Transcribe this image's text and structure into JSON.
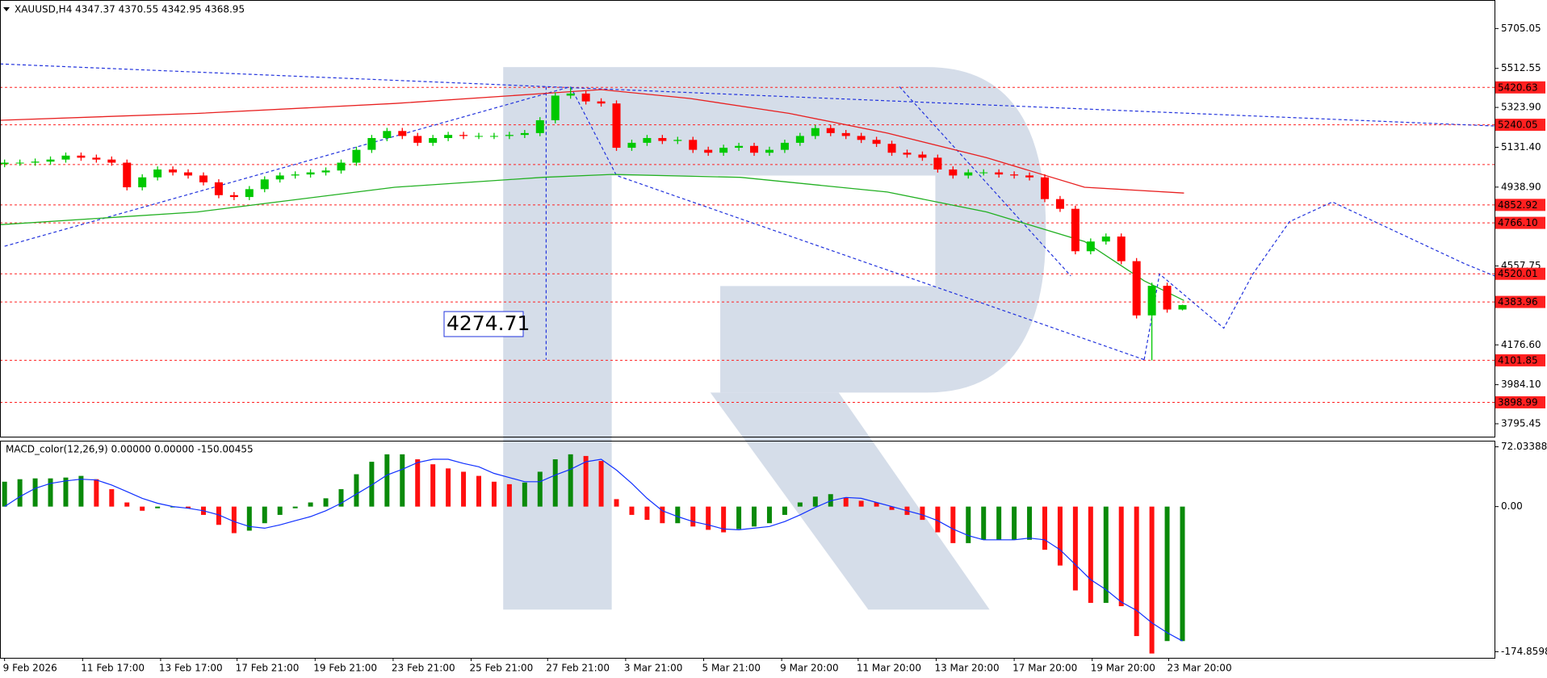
{
  "chart_data": {
    "type": "candlestick",
    "title": "XAUUSD,H4  4347.37 4370.55 4342.95 4368.95",
    "xlim": [
      -0.3,
      97.4
    ],
    "xticks": [
      {
        "value": 0,
        "label": "9 Feb 2026"
      },
      {
        "value": 5.1,
        "label": "11 Feb 17:00"
      },
      {
        "value": 10.2,
        "label": "13 Feb 17:00"
      },
      {
        "value": 15.2,
        "label": "17 Feb 21:00"
      },
      {
        "value": 20.3,
        "label": "19 Feb 21:00"
      },
      {
        "value": 25.4,
        "label": "23 Feb 21:00"
      },
      {
        "value": 30.5,
        "label": "25 Feb 21:00"
      },
      {
        "value": 35.5,
        "label": "27 Feb 21:00"
      },
      {
        "value": 40.6,
        "label": "3 Mar 21:00"
      },
      {
        "value": 45.7,
        "label": "5 Mar 21:00"
      },
      {
        "value": 50.8,
        "label": "9 Mar 20:00"
      },
      {
        "value": 55.8,
        "label": "11 Mar 20:00"
      },
      {
        "value": 60.9,
        "label": "13 Mar 20:00"
      },
      {
        "value": 66,
        "label": "17 Mar 20:00"
      },
      {
        "value": 71.1,
        "label": "19 Mar 20:00"
      },
      {
        "value": 76.1,
        "label": "23 Mar 20:00"
      }
    ],
    "ylim": [
      3733,
      5843
    ],
    "yticks": [
      5705.05,
      5512.55,
      {
        "value": 5323.9,
        "label": "5323.90"
      },
      {
        "value": 5131.4,
        "label": "5131.40"
      },
      {
        "value": 4938.9,
        "label": "4938.90"
      },
      4557.75,
      {
        "value": 4176.6,
        "label": "4176.60"
      },
      {
        "value": 3984.1,
        "label": "3984.10"
      },
      3795.45
    ],
    "up_color": "#00c800",
    "down_color": "#ff0000",
    "open": [
      5050,
      5057,
      5057,
      5062,
      5072,
      5091,
      5081,
      5072,
      5057,
      4938,
      4986,
      5024,
      5010,
      4995,
      4962,
      4900,
      4891,
      4929,
      4976,
      4995,
      5000,
      5010,
      5019,
      5057,
      5119,
      5176,
      5210,
      5186,
      5153,
      5176,
      5191,
      5186,
      5186,
      5186,
      5191,
      5200,
      5262,
      5381,
      5391,
      5353,
      5343,
      5129,
      5153,
      5176,
      5162,
      5167,
      5119,
      5105,
      5129,
      5138,
      5105,
      5119,
      5153,
      5186,
      5224,
      5200,
      5186,
      5167,
      5148,
      5105,
      5096,
      5081,
      5024,
      4995,
      5010,
      5010,
      5000,
      4995,
      4986,
      4881,
      4834,
      4629,
      4676,
      4700,
      4581,
      4319,
      4462,
      4347.37
    ],
    "high": [
      5072,
      5072,
      5077,
      5087,
      5106,
      5106,
      5096,
      5087,
      5072,
      5001,
      5039,
      5039,
      5025,
      5010,
      4977,
      4915,
      4944,
      4991,
      5010,
      5015,
      5025,
      5034,
      5072,
      5134,
      5191,
      5225,
      5225,
      5201,
      5191,
      5206,
      5206,
      5201,
      5201,
      5206,
      5215,
      5277,
      5396,
      5420.63,
      5406,
      5368,
      5358,
      5168,
      5191,
      5191,
      5182,
      5182,
      5134,
      5144,
      5153,
      5153,
      5134,
      5168,
      5201,
      5239,
      5239,
      5215,
      5201,
      5182,
      5163,
      5120,
      5111,
      5096,
      5039,
      5025,
      5025,
      5025,
      5015,
      5010,
      5001,
      4896,
      4849,
      4691,
      4715,
      4715,
      4596,
      4477,
      4477,
      4370.55
    ],
    "low": [
      5035,
      5042,
      5042,
      5047,
      5057,
      5066,
      5057,
      5042,
      4923,
      4923,
      4971,
      4995,
      4980,
      4947,
      4885,
      4876,
      4876,
      4914,
      4961,
      4980,
      4985,
      4995,
      5004,
      5042,
      5104,
      5161,
      5171,
      5138,
      5138,
      5161,
      5171,
      5171,
      5171,
      5171,
      5176,
      5185,
      5247,
      5366,
      5338,
      5328,
      5114,
      5114,
      5138,
      5147,
      5147,
      5104,
      5090,
      5090,
      5114,
      5090,
      5090,
      5104,
      5138,
      5171,
      5185,
      5171,
      5152,
      5133,
      5090,
      5081,
      5066,
      5009,
      4980,
      4980,
      4995,
      4985,
      4980,
      4971,
      4866,
      4819,
      4614,
      4614,
      4661,
      4566,
      4304,
      4101.85,
      4332,
      4342.95
    ],
    "close": [
      5057,
      5057,
      5062,
      5072,
      5091,
      5081,
      5072,
      5057,
      4938,
      4986,
      5024,
      5010,
      4995,
      4962,
      4900,
      4891,
      4929,
      4976,
      4995,
      5000,
      5010,
      5019,
      5057,
      5119,
      5176,
      5210,
      5186,
      5153,
      5176,
      5191,
      5186,
      5186,
      5186,
      5191,
      5200,
      5262,
      5381,
      5391,
      5353,
      5343,
      5129,
      5153,
      5176,
      5162,
      5167,
      5119,
      5105,
      5129,
      5138,
      5105,
      5119,
      5153,
      5186,
      5224,
      5200,
      5186,
      5167,
      5148,
      5105,
      5096,
      5081,
      5024,
      4995,
      5010,
      5010,
      5000,
      4995,
      4986,
      4881,
      4834,
      4629,
      4676,
      4700,
      4581,
      4319,
      4462,
      4347.37,
      4368.95
    ],
    "level_color": "#ff2020",
    "levels": [
      5420.63,
      5240.05,
      4852.92,
      {
        "value": 4766.1,
        "label": "4766.10"
      },
      4520.01,
      4383.96,
      4101.85,
      3898.99
    ],
    "unlabeled_levels": [
      5048
    ],
    "moving_averages": [
      {
        "color": "#e82020",
        "x": [
          -0.3,
          12.6,
          25.5,
          35.2,
          39,
          44.8,
          51.3,
          57.7,
          64.2,
          70.6,
          77.1
        ],
        "values": [
          5262,
          5295,
          5343,
          5391,
          5410,
          5367,
          5295,
          5200,
          5081,
          4938,
          4910
        ]
      },
      {
        "color": "#22b022",
        "x": [
          -0.3,
          12.6,
          25.5,
          35.2,
          39.7,
          48.1,
          57.7,
          64.2,
          70.6,
          74.5,
          77.1
        ],
        "values": [
          4757,
          4819,
          4938,
          4986,
          5000,
          4986,
          4915,
          4819,
          4676,
          4486,
          4391
        ]
      }
    ],
    "trend_color": "#2233dd",
    "trendlines": [
      {
        "x": [
          -0.3,
          97.4
        ],
        "values": [
          5534,
          5234
        ]
      },
      {
        "x": [
          0,
          37
        ],
        "values": [
          4653,
          5424
        ]
      },
      {
        "x": [
          37,
          40,
          74.5
        ],
        "values": [
          5424,
          4995,
          4105
        ]
      },
      {
        "x": [
          58.5,
          69.7
        ],
        "values": [
          5424,
          4510
        ]
      },
      {
        "x": [
          74.5,
          75.5,
          79.7,
          81.6,
          84,
          86.8,
          95.5,
          97.4
        ],
        "values": [
          4105,
          4519,
          4257,
          4519,
          4772,
          4867,
          4567,
          4510
        ]
      },
      {
        "x": [
          35.4,
          35.4
        ],
        "values": [
          5424,
          4105
        ]
      }
    ],
    "measure_label": 4274.71,
    "macd": {
      "title": "MACD_color(12,26,9) 0.00000 0.00000 -150.00455",
      "ylim": [
        -182.2,
        79.4
      ],
      "yticks": [
        72.03388,
        {
          "value": 0,
          "label": "0.00"
        },
        -174.85984
      ],
      "up_color": "#0a8a0a",
      "down_color": "#ff1010",
      "signal_color": "#1030ff",
      "histogram": [
        30,
        33,
        34,
        34,
        35,
        37,
        33,
        21,
        5,
        -5,
        -2,
        -1,
        -2,
        -10,
        -22,
        -32,
        -29,
        -20,
        -10,
        -2,
        5,
        10,
        21,
        39,
        54,
        63,
        63,
        57,
        51,
        46,
        42,
        37,
        30,
        27,
        29,
        42,
        57,
        63,
        61,
        55,
        9,
        -10,
        -16,
        -20,
        -20,
        -24,
        -28,
        -31,
        -27,
        -24,
        -20,
        -10,
        5,
        12,
        15,
        11,
        7,
        5,
        -4,
        -10,
        -16,
        -31,
        -44,
        -44,
        -40,
        -40,
        -40,
        -40,
        -52,
        -71,
        -101,
        -116,
        -116,
        -120,
        -156,
        -177,
        -162,
        -162
      ],
      "signal": [
        0,
        12,
        22,
        28,
        31,
        33,
        32,
        26,
        18,
        10,
        4,
        0,
        -2,
        -5,
        -10,
        -18,
        -24,
        -26,
        -22,
        -17,
        -12,
        -5,
        4,
        15,
        26,
        38,
        45,
        53,
        57,
        57,
        52,
        48,
        40,
        35,
        30,
        30,
        38,
        45,
        54,
        57,
        44,
        28,
        10,
        -5,
        -12,
        -18,
        -22,
        -27,
        -28,
        -26,
        -24,
        -18,
        -10,
        -1,
        7,
        11,
        10,
        5,
        0,
        -5,
        -10,
        -17,
        -27,
        -35,
        -40,
        -40,
        -40,
        -38,
        -40,
        -52,
        -70,
        -88,
        -100,
        -115,
        -125,
        -140,
        -152,
        -162
      ]
    }
  }
}
